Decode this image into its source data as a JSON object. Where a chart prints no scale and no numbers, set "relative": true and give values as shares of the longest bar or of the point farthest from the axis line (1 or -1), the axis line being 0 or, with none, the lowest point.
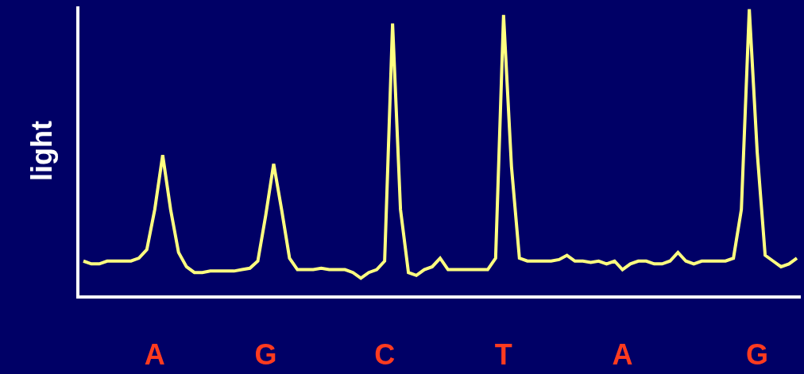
{
  "chart_data": {
    "type": "line",
    "ylabel": "light",
    "relative": true,
    "grid": false,
    "marker": "none",
    "line_style": "solid",
    "categories": [
      null,
      null,
      null,
      null,
      null,
      null,
      null,
      null,
      null,
      "A",
      null,
      null,
      null,
      null,
      null,
      null,
      null,
      null,
      null,
      null,
      null,
      null,
      null,
      "G",
      null,
      null,
      null,
      null,
      null,
      null,
      null,
      null,
      null,
      null,
      null,
      null,
      null,
      null,
      "C",
      null,
      null,
      null,
      null,
      null,
      null,
      null,
      null,
      null,
      null,
      null,
      null,
      null,
      null,
      "T",
      null,
      null,
      null,
      null,
      null,
      null,
      null,
      null,
      null,
      null,
      null,
      null,
      null,
      null,
      "A",
      null,
      null,
      null,
      null,
      null,
      null,
      null,
      null,
      null,
      null,
      null,
      null,
      null,
      null,
      null,
      null,
      "G",
      null,
      null,
      null,
      null,
      null
    ],
    "series": [
      {
        "color": "#ffff80",
        "values": [
          0.12,
          0.11,
          0.11,
          0.12,
          0.12,
          0.12,
          0.12,
          0.13,
          0.16,
          0.3,
          0.49,
          0.3,
          0.15,
          0.1,
          0.08,
          0.08,
          0.085,
          0.085,
          0.085,
          0.085,
          0.09,
          0.095,
          0.12,
          0.28,
          0.46,
          0.3,
          0.13,
          0.09,
          0.09,
          0.09,
          0.095,
          0.09,
          0.09,
          0.09,
          0.08,
          0.06,
          0.08,
          0.09,
          0.12,
          0.95,
          0.3,
          0.08,
          0.07,
          0.09,
          0.1,
          0.13,
          0.09,
          0.09,
          0.09,
          0.09,
          0.09,
          0.09,
          0.13,
          0.98,
          0.45,
          0.13,
          0.12,
          0.12,
          0.12,
          0.12,
          0.125,
          0.14,
          0.12,
          0.12,
          0.115,
          0.12,
          0.11,
          0.12,
          0.09,
          0.11,
          0.12,
          0.12,
          0.11,
          0.11,
          0.12,
          0.15,
          0.12,
          0.11,
          0.12,
          0.12,
          0.12,
          0.12,
          0.13,
          0.3,
          1.0,
          0.5,
          0.14,
          0.12,
          0.1,
          0.11,
          0.13
        ]
      }
    ]
  }
}
